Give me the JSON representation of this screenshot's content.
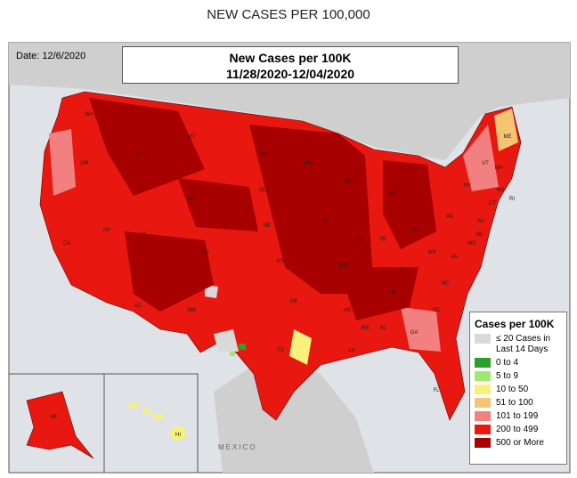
{
  "title": "NEW CASES PER 100,000",
  "map": {
    "date_label": "Date: 12/6/2020",
    "header": {
      "title": "New Cases per 100K",
      "period": "11/28/2020-12/04/2020"
    },
    "legend": {
      "title": "Cases per 100K",
      "items": [
        {
          "label": "≤ 20 Cases in Last 14 Days",
          "color": "#d9d9d9"
        },
        {
          "label": "0 to 4",
          "color": "#2ca02c"
        },
        {
          "label": "5 to 9",
          "color": "#9ee86f"
        },
        {
          "label": "10 to 50",
          "color": "#f7f07a"
        },
        {
          "label": "51 to 100",
          "color": "#f2c474"
        },
        {
          "label": "101 to 199",
          "color": "#f28080"
        },
        {
          "label": "200 to 499",
          "color": "#e8170f"
        },
        {
          "label": "500 or More",
          "color": "#a80000"
        }
      ]
    },
    "place_labels": [
      "MEXICO"
    ],
    "state_labels": [
      "WA",
      "OR",
      "CA",
      "NV",
      "ID",
      "MT",
      "WY",
      "UT",
      "AZ",
      "CO",
      "NM",
      "ND",
      "SD",
      "NE",
      "KS",
      "OK",
      "TX",
      "MN",
      "IA",
      "MO",
      "AR",
      "LA",
      "WI",
      "IL",
      "MI",
      "IN",
      "OH",
      "KY",
      "TN",
      "MS",
      "AL",
      "GA",
      "FL",
      "SC",
      "NC",
      "VA",
      "WV",
      "PA",
      "NY",
      "ME",
      "VT",
      "NH",
      "MA",
      "RI",
      "CT",
      "NJ",
      "DE",
      "MD",
      "AK",
      "HI"
    ]
  }
}
